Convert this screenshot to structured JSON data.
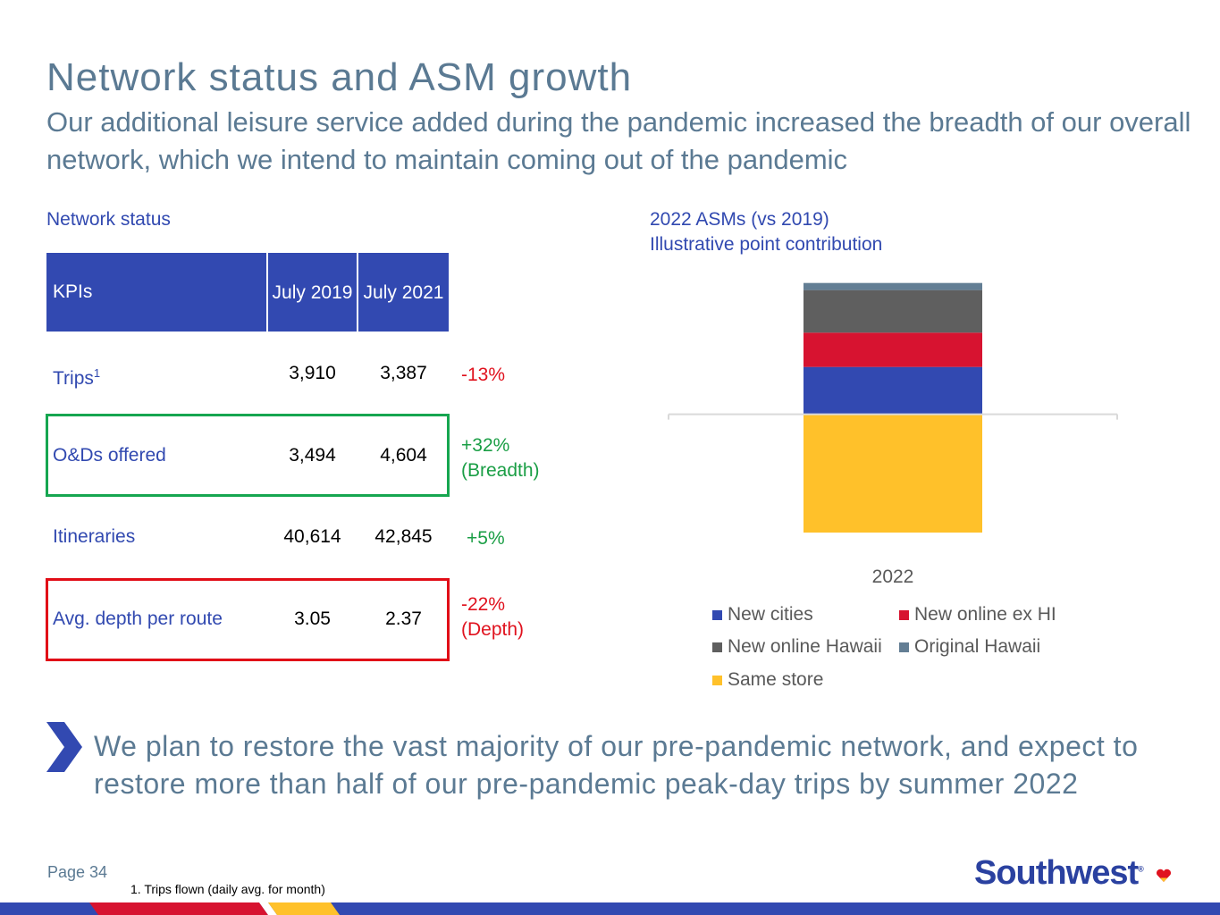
{
  "header": {
    "title": "Network status and ASM growth",
    "subtitle": "Our additional leisure service added during the pandemic increased the breadth of our overall network, which we intend to maintain coming out of the pandemic"
  },
  "network_status": {
    "section_label": "Network status",
    "columns": [
      "KPIs",
      "July 2019",
      "July 2021"
    ],
    "rows": [
      {
        "label": "Trips",
        "footnote_mark": "1",
        "july_2019": "3,910",
        "july_2021": "3,387",
        "change": "-13%",
        "change_note": ""
      },
      {
        "label": "O&Ds offered",
        "footnote_mark": "",
        "july_2019": "3,494",
        "july_2021": "4,604",
        "change": "+32%",
        "change_note": "(Breadth)"
      },
      {
        "label": "Itineraries",
        "footnote_mark": "",
        "july_2019": "40,614",
        "july_2021": "42,845",
        "change": "+5%",
        "change_note": ""
      },
      {
        "label": "Avg. depth per route",
        "footnote_mark": "",
        "july_2019": "3.05",
        "july_2021": "2.37",
        "change": "-22%",
        "change_note": "(Depth)"
      }
    ],
    "colors": {
      "header": "#3249b1",
      "label": "#3149b0",
      "positive": "#1a9e45",
      "negative": "#e0121e",
      "breadth_box": "#16a650",
      "depth_box": "#e10d17"
    }
  },
  "asm_chart_header": {
    "title": "2022 ASMs (vs 2019)",
    "subtitle": "Illustrative point contribution"
  },
  "chart_data": {
    "type": "bar",
    "stacked": true,
    "categories": [
      "2022"
    ],
    "series": [
      {
        "name": "Same store",
        "values": [
          -10.0
        ],
        "color": "#ffc12a"
      },
      {
        "name": "New cities",
        "values": [
          4.0
        ],
        "color": "#3249b1"
      },
      {
        "name": "New online ex HI",
        "values": [
          2.9
        ],
        "color": "#d71330"
      },
      {
        "name": "New online Hawaii",
        "values": [
          3.6
        ],
        "color": "#5f5f5f"
      },
      {
        "name": "Original Hawaii",
        "values": [
          0.6
        ],
        "color": "#637e94"
      }
    ],
    "ylim": [
      -10,
      11
    ],
    "axis_labels_shown": false,
    "grid": false,
    "legend_position": "bottom"
  },
  "callout": {
    "icon": "chevron-right-icon",
    "text": "We plan to restore the vast majority of our pre-pandemic network, and expect to restore more than half of our pre-pandemic peak-day trips by summer 2022"
  },
  "footer": {
    "page": "Page 34",
    "footnote": "1. Trips flown (daily avg. for month)",
    "logo_text": "Southwest",
    "logo_mark": "®"
  }
}
